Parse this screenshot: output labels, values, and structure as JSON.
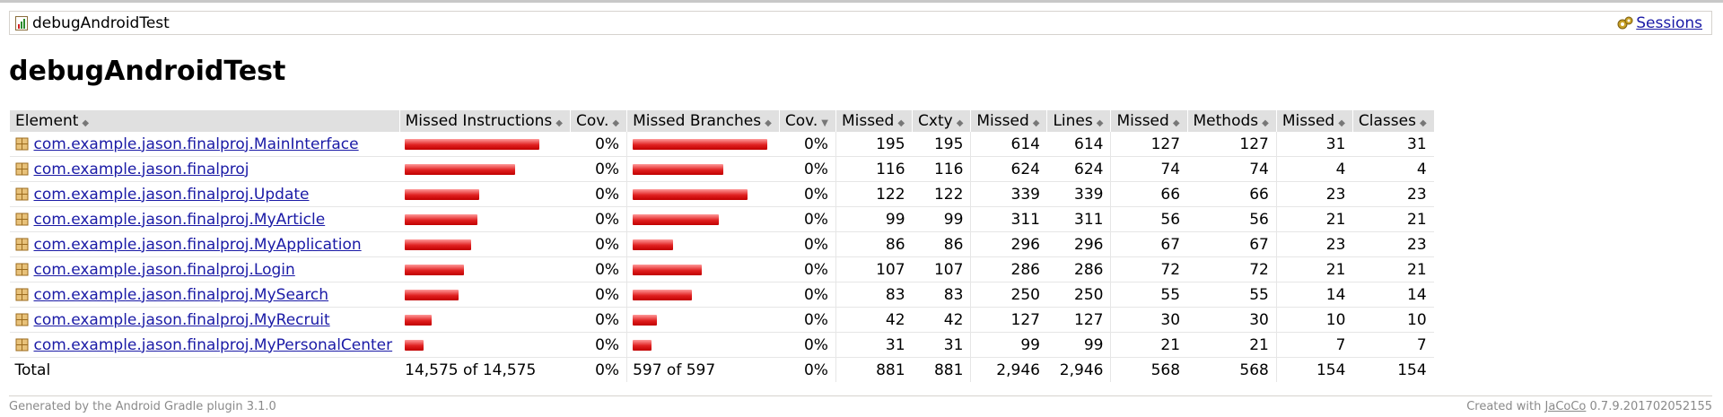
{
  "breadcrumb": {
    "report_name": "debugAndroidTest",
    "sessions_label": "Sessions"
  },
  "page_title": "debugAndroidTest",
  "table": {
    "headers": [
      "Element",
      "Missed Instructions",
      "Cov.",
      "Missed Branches",
      "Cov.",
      "Missed",
      "Cxty",
      "Missed",
      "Lines",
      "Missed",
      "Methods",
      "Missed",
      "Classes"
    ],
    "rows": [
      {
        "name": "com.example.jason.finalproj.MainInterface",
        "instr_bar": 1.0,
        "instr_cov": "0%",
        "branch_bar": 1.0,
        "branch_cov": "0%",
        "cxty_missed": "195",
        "cxty": "195",
        "lines_missed": "614",
        "lines": "614",
        "methods_missed": "127",
        "methods": "127",
        "classes_missed": "31",
        "classes": "31"
      },
      {
        "name": "com.example.jason.finalproj",
        "instr_bar": 0.82,
        "instr_cov": "0%",
        "branch_bar": 0.67,
        "branch_cov": "0%",
        "cxty_missed": "116",
        "cxty": "116",
        "lines_missed": "624",
        "lines": "624",
        "methods_missed": "74",
        "methods": "74",
        "classes_missed": "4",
        "classes": "4"
      },
      {
        "name": "com.example.jason.finalproj.Update",
        "instr_bar": 0.55,
        "instr_cov": "0%",
        "branch_bar": 0.85,
        "branch_cov": "0%",
        "cxty_missed": "122",
        "cxty": "122",
        "lines_missed": "339",
        "lines": "339",
        "methods_missed": "66",
        "methods": "66",
        "classes_missed": "23",
        "classes": "23"
      },
      {
        "name": "com.example.jason.finalproj.MyArticle",
        "instr_bar": 0.54,
        "instr_cov": "0%",
        "branch_bar": 0.64,
        "branch_cov": "0%",
        "cxty_missed": "99",
        "cxty": "99",
        "lines_missed": "311",
        "lines": "311",
        "methods_missed": "56",
        "methods": "56",
        "classes_missed": "21",
        "classes": "21"
      },
      {
        "name": "com.example.jason.finalproj.MyApplication",
        "instr_bar": 0.49,
        "instr_cov": "0%",
        "branch_bar": 0.3,
        "branch_cov": "0%",
        "cxty_missed": "86",
        "cxty": "86",
        "lines_missed": "296",
        "lines": "296",
        "methods_missed": "67",
        "methods": "67",
        "classes_missed": "23",
        "classes": "23"
      },
      {
        "name": "com.example.jason.finalproj.Login",
        "instr_bar": 0.44,
        "instr_cov": "0%",
        "branch_bar": 0.51,
        "branch_cov": "0%",
        "cxty_missed": "107",
        "cxty": "107",
        "lines_missed": "286",
        "lines": "286",
        "methods_missed": "72",
        "methods": "72",
        "classes_missed": "21",
        "classes": "21"
      },
      {
        "name": "com.example.jason.finalproj.MySearch",
        "instr_bar": 0.4,
        "instr_cov": "0%",
        "branch_bar": 0.44,
        "branch_cov": "0%",
        "cxty_missed": "83",
        "cxty": "83",
        "lines_missed": "250",
        "lines": "250",
        "methods_missed": "55",
        "methods": "55",
        "classes_missed": "14",
        "classes": "14"
      },
      {
        "name": "com.example.jason.finalproj.MyRecruit",
        "instr_bar": 0.2,
        "instr_cov": "0%",
        "branch_bar": 0.18,
        "branch_cov": "0%",
        "cxty_missed": "42",
        "cxty": "42",
        "lines_missed": "127",
        "lines": "127",
        "methods_missed": "30",
        "methods": "30",
        "classes_missed": "10",
        "classes": "10"
      },
      {
        "name": "com.example.jason.finalproj.MyPersonalCenter",
        "instr_bar": 0.14,
        "instr_cov": "0%",
        "branch_bar": 0.14,
        "branch_cov": "0%",
        "cxty_missed": "31",
        "cxty": "31",
        "lines_missed": "99",
        "lines": "99",
        "methods_missed": "21",
        "methods": "21",
        "classes_missed": "7",
        "classes": "7"
      }
    ],
    "total": {
      "label": "Total",
      "instr": "14,575 of 14,575",
      "instr_cov": "0%",
      "branch": "597 of 597",
      "branch_cov": "0%",
      "cxty_missed": "881",
      "cxty": "881",
      "lines_missed": "2,946",
      "lines": "2,946",
      "methods_missed": "568",
      "methods": "568",
      "classes_missed": "154",
      "classes": "154"
    }
  },
  "footer": {
    "generated_by": "Generated by the Android Gradle plugin 3.1.0",
    "created_with_prefix": "Created with",
    "jacoco_link": "JaCoCo",
    "version": "0.7.9.201702052155"
  },
  "colors": {
    "bar_red": "#e02020",
    "link": "#1a1aa6",
    "header_bg": "#e0e0e0"
  },
  "icons": {
    "report": "report-icon",
    "sessions": "session-icon",
    "package": "package-icon"
  }
}
